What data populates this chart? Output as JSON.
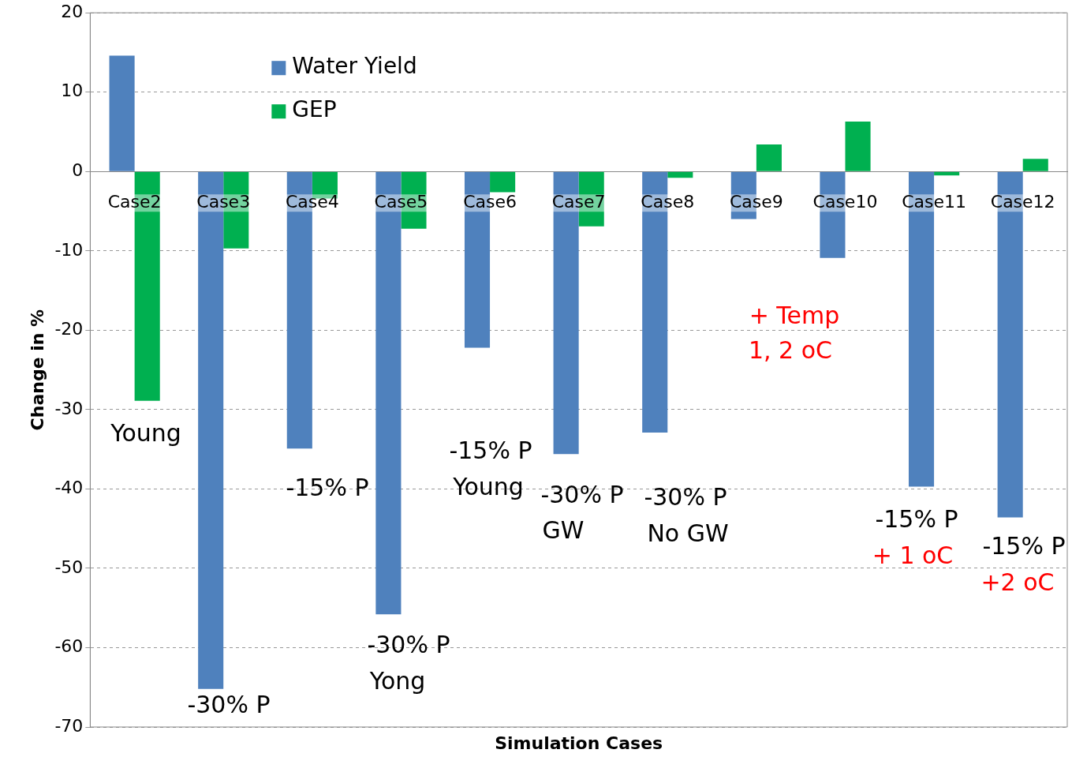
{
  "chart_data": {
    "type": "bar",
    "xlabel": "Simulation Cases",
    "ylabel": "Change in %",
    "categories": [
      "Case2",
      "Case3",
      "Case4",
      "Case5",
      "Case6",
      "Case7",
      "Case8",
      "Case9",
      "Case10",
      "Case11",
      "Case12"
    ],
    "series": [
      {
        "name": "Water Yield",
        "color": "#4f81bd",
        "values": [
          14.6,
          -65.2,
          -34.9,
          -55.8,
          -22.2,
          -35.6,
          -32.9,
          -6.0,
          -10.9,
          -39.7,
          -43.6
        ]
      },
      {
        "name": "GEP",
        "color": "#00b050",
        "values": [
          -28.9,
          -9.7,
          -3.4,
          -7.2,
          -2.6,
          -6.9,
          -0.8,
          3.4,
          6.3,
          -0.5,
          1.6
        ]
      }
    ],
    "ylim": [
      -70,
      20
    ],
    "yticks": [
      -70,
      -60,
      -50,
      -40,
      -30,
      -20,
      -10,
      0,
      10,
      20
    ],
    "grid": "y",
    "legend": "top left",
    "annotations": [
      "Young",
      "-30% P",
      "-15% P",
      "-30% P",
      "Yong",
      "-15% P",
      "Young",
      "-30% P",
      "GW",
      "-30% P",
      "No GW",
      "+ Temp",
      "1, 2 oC",
      "-15% P",
      "+ 1 oC",
      "-15% P",
      "+2 oC"
    ]
  }
}
